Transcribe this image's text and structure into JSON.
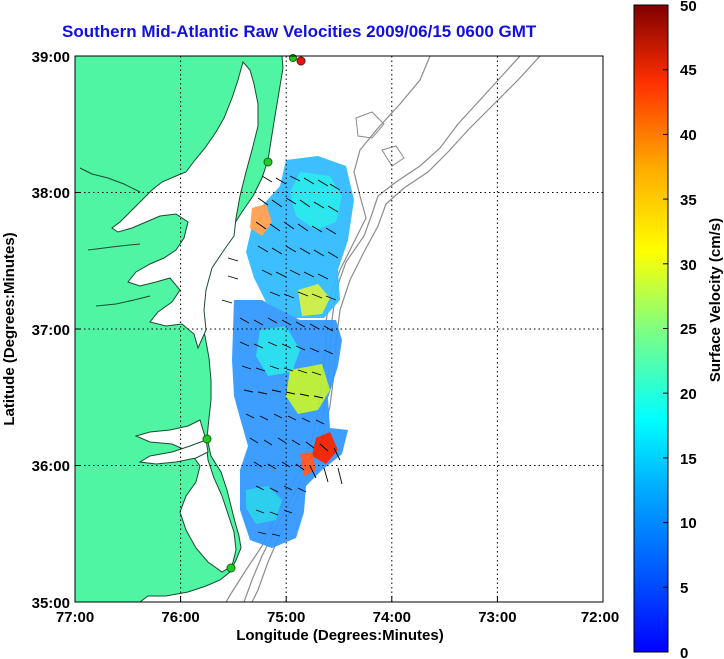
{
  "title": "Southern Mid-Atlantic Raw Velocities 2009/06/15 0600 GMT",
  "axes": {
    "xlabel": "Longitude (Degrees:Minutes)",
    "ylabel": "Latitude (Degrees:Minutes)",
    "x_ticks": [
      "77:00",
      "76:00",
      "75:00",
      "74:00",
      "73:00",
      "72:00"
    ],
    "y_ticks": [
      "39:00",
      "38:00",
      "37:00",
      "36:00",
      "35:00"
    ],
    "x_range": [
      -77,
      -72
    ],
    "y_range": [
      35,
      39
    ],
    "grid": "dotted"
  },
  "colorbar": {
    "label": "Surface Velocity (cm/s)",
    "ticks": [
      "0",
      "5",
      "10",
      "15",
      "20",
      "25",
      "30",
      "35",
      "40",
      "45",
      "50"
    ],
    "range": [
      0,
      50
    ],
    "colormap": "jet"
  },
  "colors": {
    "land": "#4ff5a3",
    "coast": "#1a4a30",
    "bathymetry": "#8c8c8c",
    "title": "#1010e0",
    "site_marker_green": "#22cc22",
    "site_marker_red": "#ee1111"
  }
}
